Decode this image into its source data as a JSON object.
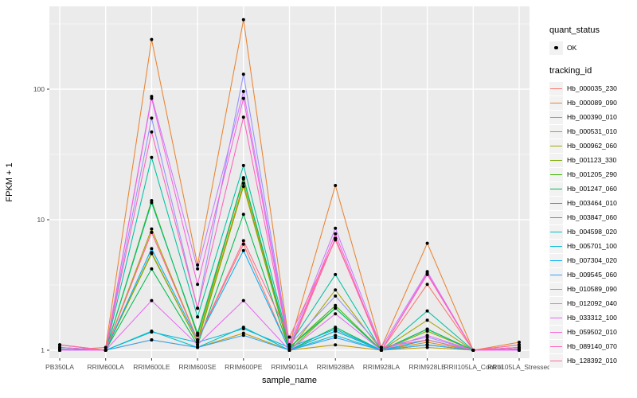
{
  "chart_data": {
    "type": "line",
    "title": "",
    "xlabel": "sample_name",
    "ylabel": "FPKM + 1",
    "x_categories": [
      "PB350LA",
      "RRIM600LA",
      "RRIM600LE",
      "RRIM600SE",
      "RRIM600PE",
      "RRIM901LA",
      "RRIM928BA",
      "RRIM928LA",
      "RRIM928LE",
      "RRII105LA_Control",
      "RRII105LA_Stressed"
    ],
    "y_scale": "log10",
    "y_ticks": [
      1,
      10,
      100
    ],
    "y_tick_labels": [
      "1",
      "10",
      "100"
    ],
    "y_minor_ticks": [
      3.162,
      31.62,
      316.2
    ],
    "ylim": [
      0.95,
      420
    ],
    "grid": "on",
    "legend_position": "right",
    "legend": {
      "quant_title": "quant_status",
      "quant_items": [
        {
          "label": "OK",
          "marker": "point",
          "color": "#000000"
        }
      ],
      "series_title": "tracking_id"
    },
    "series": [
      {
        "name": "Hb_000035_230",
        "color": "#F8766D",
        "values": [
          1.05,
          1.0,
          8.0,
          1.2,
          6.5,
          1.0,
          7.2,
          1.0,
          3.2,
          1.0,
          1.1
        ]
      },
      {
        "name": "Hb_000089_090",
        "color": "#EA8331",
        "values": [
          1.0,
          1.05,
          240,
          4.5,
          340,
          1.1,
          18.3,
          1.05,
          6.6,
          1.0,
          1.15
        ]
      },
      {
        "name": "Hb_000390_010",
        "color": "#D89000",
        "values": [
          1.0,
          1.0,
          5.6,
          1.15,
          19,
          1.0,
          1.4,
          1.0,
          1.15,
          1.0,
          1.05
        ]
      },
      {
        "name": "Hb_000531_010",
        "color": "#C09B00",
        "values": [
          1.0,
          1.0,
          1.2,
          1.05,
          1.35,
          1.0,
          1.1,
          1.0,
          1.05,
          1.0,
          1.02
        ]
      },
      {
        "name": "Hb_000962_060",
        "color": "#A3A500",
        "values": [
          1.0,
          1.0,
          8.5,
          1.2,
          21,
          1.0,
          2.9,
          1.0,
          1.7,
          1.0,
          1.05
        ]
      },
      {
        "name": "Hb_001123_330",
        "color": "#7CAE00",
        "values": [
          1.0,
          1.0,
          5.5,
          1.15,
          18,
          1.0,
          2.1,
          1.0,
          1.4,
          1.0,
          1.02
        ]
      },
      {
        "name": "Hb_001205_290",
        "color": "#39B600",
        "values": [
          1.0,
          1.0,
          14,
          1.3,
          21,
          1.05,
          2.2,
          1.0,
          1.45,
          1.0,
          1.05
        ]
      },
      {
        "name": "Hb_001247_060",
        "color": "#00BB4E",
        "values": [
          1.0,
          1.0,
          4.2,
          1.1,
          11,
          1.0,
          1.5,
          1.0,
          1.2,
          1.0,
          1.02
        ]
      },
      {
        "name": "Hb_003464_010",
        "color": "#00BF7D",
        "values": [
          1.0,
          1.0,
          13.5,
          1.35,
          20.5,
          1.05,
          2.1,
          1.0,
          1.45,
          1.0,
          1.05
        ]
      },
      {
        "name": "Hb_003847_060",
        "color": "#00C1A3",
        "values": [
          1.0,
          1.0,
          30,
          1.8,
          26,
          1.1,
          3.8,
          1.0,
          2.0,
          1.0,
          1.02
        ]
      },
      {
        "name": "Hb_004598_020",
        "color": "#00BFC4",
        "values": [
          1.02,
          1.0,
          1.4,
          1.05,
          1.5,
          1.0,
          1.3,
          1.0,
          1.1,
          1.0,
          1.0
        ]
      },
      {
        "name": "Hb_005701_100",
        "color": "#00BBDA",
        "values": [
          1.0,
          1.0,
          1.38,
          1.15,
          1.46,
          1.05,
          1.45,
          1.0,
          1.1,
          1.0,
          1.0
        ]
      },
      {
        "name": "Hb_007304_020",
        "color": "#00B0F6",
        "values": [
          1.0,
          1.0,
          6.0,
          1.2,
          5.8,
          1.0,
          1.4,
          1.0,
          1.2,
          1.0,
          1.02
        ]
      },
      {
        "name": "Hb_009545_060",
        "color": "#35A2FF",
        "values": [
          1.05,
          1.0,
          1.2,
          1.05,
          1.3,
          1.0,
          1.25,
          1.0,
          1.1,
          1.0,
          1.0
        ]
      },
      {
        "name": "Hb_010589_090",
        "color": "#9590FF",
        "values": [
          1.1,
          1.0,
          60,
          2.1,
          130,
          1.1,
          2.6,
          1.05,
          1.26,
          1.0,
          1.05
        ]
      },
      {
        "name": "Hb_012092_040",
        "color": "#C77CFF",
        "values": [
          1.05,
          1.0,
          88,
          4.2,
          96,
          1.1,
          8.6,
          1.05,
          4.0,
          1.0,
          1.05
        ]
      },
      {
        "name": "Hb_033312_100",
        "color": "#E76BF3",
        "values": [
          1.0,
          1.0,
          2.4,
          1.1,
          2.4,
          1.0,
          1.9,
          1.0,
          1.3,
          1.0,
          1.0
        ]
      },
      {
        "name": "Hb_059502_010",
        "color": "#FA62DB",
        "values": [
          1.05,
          1.0,
          85,
          3.2,
          85,
          1.05,
          7.8,
          1.0,
          3.9,
          1.0,
          1.02
        ]
      },
      {
        "name": "Hb_089140_070",
        "color": "#FF62BC",
        "values": [
          1.1,
          1.0,
          47,
          2.1,
          61,
          1.05,
          7.2,
          1.0,
          3.8,
          1.0,
          1.05
        ]
      },
      {
        "name": "Hb_128392_010",
        "color": "#FF6A98",
        "values": [
          1.1,
          1.0,
          8.0,
          1.2,
          6.9,
          1.26,
          7.0,
          1.05,
          1.2,
          1.0,
          1.1
        ]
      }
    ]
  }
}
